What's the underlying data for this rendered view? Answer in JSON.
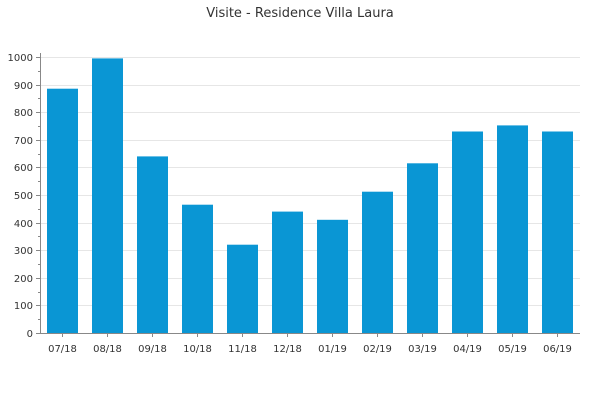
{
  "chart_data": {
    "type": "bar",
    "title": "Visite - Residence Villa Laura",
    "xlabel": "",
    "ylabel": "",
    "categories": [
      "07/18",
      "08/18",
      "09/18",
      "10/18",
      "11/18",
      "12/18",
      "01/19",
      "02/19",
      "03/19",
      "04/19",
      "05/19",
      "06/19"
    ],
    "values": [
      885,
      995,
      640,
      465,
      320,
      440,
      410,
      512,
      615,
      730,
      752,
      730
    ],
    "ylim": [
      0,
      1000
    ],
    "yticks": [
      0,
      100,
      200,
      300,
      400,
      500,
      600,
      700,
      800,
      900,
      1000
    ],
    "grid": true,
    "bar_color": "#0a96d4"
  }
}
